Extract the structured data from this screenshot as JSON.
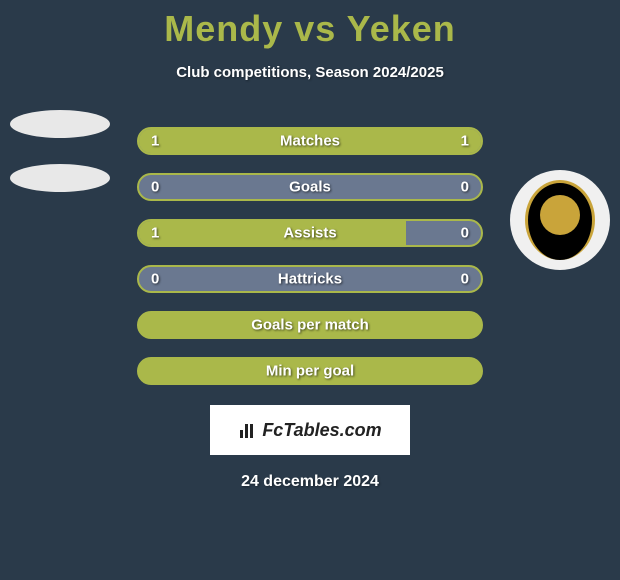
{
  "title": {
    "player1": "Mendy",
    "vs": "vs",
    "player2": "Yeken"
  },
  "subtitle": "Club competitions, Season 2024/2025",
  "colors": {
    "background": "#2a3a4a",
    "accent": "#aab84a",
    "bar_border": "#aab84a",
    "bar_fill": "#aab84a",
    "bar_empty": "#6a7890",
    "text": "#ffffff"
  },
  "bars": [
    {
      "label": "Matches",
      "left_value": "1",
      "right_value": "1",
      "left_fill_pct": 50,
      "right_fill_pct": 50,
      "left_color": "#aab84a",
      "right_color": "#aab84a",
      "border_color": "#aab84a",
      "empty_color": "#6a7890"
    },
    {
      "label": "Goals",
      "left_value": "0",
      "right_value": "0",
      "left_fill_pct": 0,
      "right_fill_pct": 0,
      "left_color": "#aab84a",
      "right_color": "#aab84a",
      "border_color": "#aab84a",
      "empty_color": "#6a7890"
    },
    {
      "label": "Assists",
      "left_value": "1",
      "right_value": "0",
      "left_fill_pct": 78,
      "right_fill_pct": 0,
      "left_color": "#aab84a",
      "right_color": "#aab84a",
      "border_color": "#aab84a",
      "empty_color": "#6a7890"
    },
    {
      "label": "Hattricks",
      "left_value": "0",
      "right_value": "0",
      "left_fill_pct": 0,
      "right_fill_pct": 0,
      "left_color": "#aab84a",
      "right_color": "#aab84a",
      "border_color": "#aab84a",
      "empty_color": "#6a7890"
    },
    {
      "label": "Goals per match",
      "left_value": "",
      "right_value": "",
      "left_fill_pct": 100,
      "right_fill_pct": 0,
      "left_color": "#aab84a",
      "right_color": "#aab84a",
      "border_color": "#aab84a",
      "empty_color": "#aab84a"
    },
    {
      "label": "Min per goal",
      "left_value": "",
      "right_value": "",
      "left_fill_pct": 100,
      "right_fill_pct": 0,
      "left_color": "#aab84a",
      "right_color": "#aab84a",
      "border_color": "#aab84a",
      "empty_color": "#aab84a"
    }
  ],
  "watermark": "FcTables.com",
  "date": "24 december 2024"
}
